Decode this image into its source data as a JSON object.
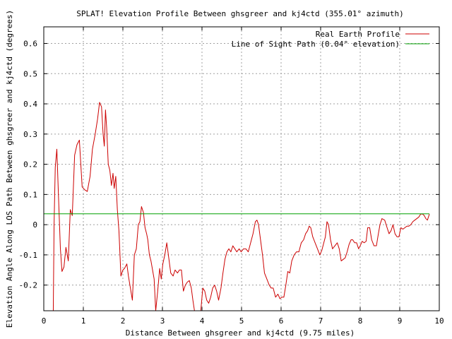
{
  "chart_data": {
    "type": "line",
    "title": "SPLAT! Elevation Profile Between ghsgreer and kj4ctd (355.01° azimuth)",
    "xlabel": "Distance Between ghsgreer and kj4ctd (9.75 miles)",
    "ylabel": "Elevation Angle Along LOS Path Between ghsgreer and kj4ctd (degrees)",
    "xlim": [
      0,
      10
    ],
    "ylim": [
      -0.285,
      0.655
    ],
    "x_ticks": [
      0,
      1,
      2,
      3,
      4,
      5,
      6,
      7,
      8,
      9,
      10
    ],
    "y_ticks": [
      -0.2,
      -0.1,
      0,
      0.1,
      0.2,
      0.3,
      0.4,
      0.5,
      0.6
    ],
    "x_tick_labels": [
      "0",
      "1",
      "2",
      "3",
      "4",
      "5",
      "6",
      "7",
      "8",
      "9",
      "10"
    ],
    "y_tick_labels": [
      "-0.2",
      "-0.1",
      "0",
      "0.1",
      "0.2",
      "0.3",
      "0.4",
      "0.5",
      "0.6"
    ],
    "grid": true,
    "legend_position": "top-right",
    "series": [
      {
        "name": "Real Earth Profile",
        "color": "#cc0000",
        "points": [
          [
            0.24,
            -0.285
          ],
          [
            0.26,
            0.0
          ],
          [
            0.29,
            0.19
          ],
          [
            0.33,
            0.25
          ],
          [
            0.37,
            0.1
          ],
          [
            0.42,
            -0.08
          ],
          [
            0.46,
            -0.155
          ],
          [
            0.51,
            -0.14
          ],
          [
            0.56,
            -0.075
          ],
          [
            0.62,
            -0.12
          ],
          [
            0.67,
            0.05
          ],
          [
            0.72,
            0.03
          ],
          [
            0.78,
            0.23
          ],
          [
            0.84,
            0.265
          ],
          [
            0.9,
            0.28
          ],
          [
            0.97,
            0.125
          ],
          [
            1.04,
            0.115
          ],
          [
            1.1,
            0.11
          ],
          [
            1.17,
            0.16
          ],
          [
            1.23,
            0.25
          ],
          [
            1.3,
            0.3
          ],
          [
            1.36,
            0.35
          ],
          [
            1.41,
            0.405
          ],
          [
            1.46,
            0.39
          ],
          [
            1.5,
            0.3
          ],
          [
            1.53,
            0.26
          ],
          [
            1.56,
            0.38
          ],
          [
            1.59,
            0.32
          ],
          [
            1.63,
            0.2
          ],
          [
            1.67,
            0.18
          ],
          [
            1.71,
            0.13
          ],
          [
            1.75,
            0.17
          ],
          [
            1.78,
            0.12
          ],
          [
            1.82,
            0.16
          ],
          [
            1.86,
            0.05
          ],
          [
            1.9,
            -0.02
          ],
          [
            1.95,
            -0.17
          ],
          [
            2.0,
            -0.15
          ],
          [
            2.04,
            -0.145
          ],
          [
            2.1,
            -0.13
          ],
          [
            2.14,
            -0.17
          ],
          [
            2.19,
            -0.21
          ],
          [
            2.24,
            -0.25
          ],
          [
            2.29,
            -0.1
          ],
          [
            2.34,
            -0.08
          ],
          [
            2.39,
            0.0
          ],
          [
            2.43,
            0.01
          ],
          [
            2.47,
            0.06
          ],
          [
            2.52,
            0.04
          ],
          [
            2.56,
            -0.01
          ],
          [
            2.6,
            -0.03
          ],
          [
            2.63,
            -0.05
          ],
          [
            2.67,
            -0.1
          ],
          [
            2.71,
            -0.12
          ],
          [
            2.75,
            -0.15
          ],
          [
            2.79,
            -0.18
          ],
          [
            2.83,
            -0.285
          ],
          [
            2.88,
            -0.22
          ],
          [
            2.93,
            -0.145
          ],
          [
            2.97,
            -0.18
          ],
          [
            3.01,
            -0.13
          ],
          [
            3.06,
            -0.1
          ],
          [
            3.11,
            -0.06
          ],
          [
            3.16,
            -0.11
          ],
          [
            3.21,
            -0.16
          ],
          [
            3.27,
            -0.17
          ],
          [
            3.32,
            -0.15
          ],
          [
            3.38,
            -0.16
          ],
          [
            3.43,
            -0.15
          ],
          [
            3.48,
            -0.15
          ],
          [
            3.53,
            -0.22
          ],
          [
            3.58,
            -0.2
          ],
          [
            3.63,
            -0.19
          ],
          [
            3.68,
            -0.185
          ],
          [
            3.73,
            -0.21
          ],
          [
            3.77,
            -0.25
          ],
          [
            3.81,
            -0.285
          ],
          [
            3.97,
            -0.285
          ],
          [
            4.02,
            -0.21
          ],
          [
            4.07,
            -0.22
          ],
          [
            4.12,
            -0.25
          ],
          [
            4.17,
            -0.26
          ],
          [
            4.22,
            -0.24
          ],
          [
            4.27,
            -0.21
          ],
          [
            4.32,
            -0.2
          ],
          [
            4.37,
            -0.22
          ],
          [
            4.42,
            -0.25
          ],
          [
            4.48,
            -0.21
          ],
          [
            4.53,
            -0.16
          ],
          [
            4.58,
            -0.115
          ],
          [
            4.63,
            -0.09
          ],
          [
            4.68,
            -0.08
          ],
          [
            4.73,
            -0.09
          ],
          [
            4.78,
            -0.07
          ],
          [
            4.83,
            -0.08
          ],
          [
            4.88,
            -0.09
          ],
          [
            4.94,
            -0.08
          ],
          [
            4.99,
            -0.09
          ],
          [
            5.05,
            -0.08
          ],
          [
            5.11,
            -0.08
          ],
          [
            5.17,
            -0.09
          ],
          [
            5.23,
            -0.06
          ],
          [
            5.29,
            -0.03
          ],
          [
            5.35,
            0.01
          ],
          [
            5.39,
            0.015
          ],
          [
            5.43,
            0.0
          ],
          [
            5.48,
            -0.05
          ],
          [
            5.53,
            -0.1
          ],
          [
            5.58,
            -0.16
          ],
          [
            5.64,
            -0.18
          ],
          [
            5.7,
            -0.2
          ],
          [
            5.75,
            -0.21
          ],
          [
            5.8,
            -0.21
          ],
          [
            5.86,
            -0.24
          ],
          [
            5.92,
            -0.23
          ],
          [
            5.97,
            -0.245
          ],
          [
            6.02,
            -0.24
          ],
          [
            6.07,
            -0.24
          ],
          [
            6.12,
            -0.2
          ],
          [
            6.17,
            -0.155
          ],
          [
            6.22,
            -0.16
          ],
          [
            6.27,
            -0.12
          ],
          [
            6.33,
            -0.1
          ],
          [
            6.39,
            -0.09
          ],
          [
            6.45,
            -0.09
          ],
          [
            6.51,
            -0.06
          ],
          [
            6.57,
            -0.05
          ],
          [
            6.62,
            -0.03
          ],
          [
            6.67,
            -0.02
          ],
          [
            6.71,
            -0.005
          ],
          [
            6.75,
            -0.01
          ],
          [
            6.8,
            -0.04
          ],
          [
            6.86,
            -0.06
          ],
          [
            6.92,
            -0.08
          ],
          [
            6.98,
            -0.1
          ],
          [
            7.03,
            -0.085
          ],
          [
            7.08,
            -0.06
          ],
          [
            7.12,
            -0.04
          ],
          [
            7.16,
            0.01
          ],
          [
            7.2,
            0.0
          ],
          [
            7.25,
            -0.05
          ],
          [
            7.3,
            -0.08
          ],
          [
            7.36,
            -0.07
          ],
          [
            7.42,
            -0.06
          ],
          [
            7.47,
            -0.08
          ],
          [
            7.52,
            -0.12
          ],
          [
            7.57,
            -0.115
          ],
          [
            7.62,
            -0.11
          ],
          [
            7.67,
            -0.09
          ],
          [
            7.72,
            -0.065
          ],
          [
            7.77,
            -0.05
          ],
          [
            7.81,
            -0.05
          ],
          [
            7.86,
            -0.06
          ],
          [
            7.91,
            -0.06
          ],
          [
            7.96,
            -0.08
          ],
          [
            8.0,
            -0.07
          ],
          [
            8.05,
            -0.055
          ],
          [
            8.1,
            -0.06
          ],
          [
            8.15,
            -0.055
          ],
          [
            8.19,
            -0.01
          ],
          [
            8.24,
            -0.01
          ],
          [
            8.29,
            -0.05
          ],
          [
            8.35,
            -0.07
          ],
          [
            8.41,
            -0.07
          ],
          [
            8.46,
            -0.03
          ],
          [
            8.5,
            0.0
          ],
          [
            8.55,
            0.02
          ],
          [
            8.62,
            0.015
          ],
          [
            8.68,
            -0.01
          ],
          [
            8.73,
            -0.03
          ],
          [
            8.78,
            -0.02
          ],
          [
            8.83,
            0.0
          ],
          [
            8.88,
            -0.03
          ],
          [
            8.93,
            -0.04
          ],
          [
            8.98,
            -0.04
          ],
          [
            9.03,
            -0.01
          ],
          [
            9.08,
            -0.015
          ],
          [
            9.13,
            -0.01
          ],
          [
            9.18,
            -0.005
          ],
          [
            9.23,
            -0.005
          ],
          [
            9.28,
            0.0
          ],
          [
            9.33,
            0.01
          ],
          [
            9.38,
            0.015
          ],
          [
            9.43,
            0.02
          ],
          [
            9.48,
            0.025
          ],
          [
            9.53,
            0.035
          ],
          [
            9.58,
            0.035
          ],
          [
            9.62,
            0.03
          ],
          [
            9.66,
            0.02
          ],
          [
            9.7,
            0.015
          ],
          [
            9.75,
            0.035
          ]
        ]
      },
      {
        "name": "Line of Sight Path (0.04° elevation)",
        "color": "#00a000",
        "points": [
          [
            0,
            0.036
          ],
          [
            9.75,
            0.036
          ]
        ]
      }
    ]
  }
}
